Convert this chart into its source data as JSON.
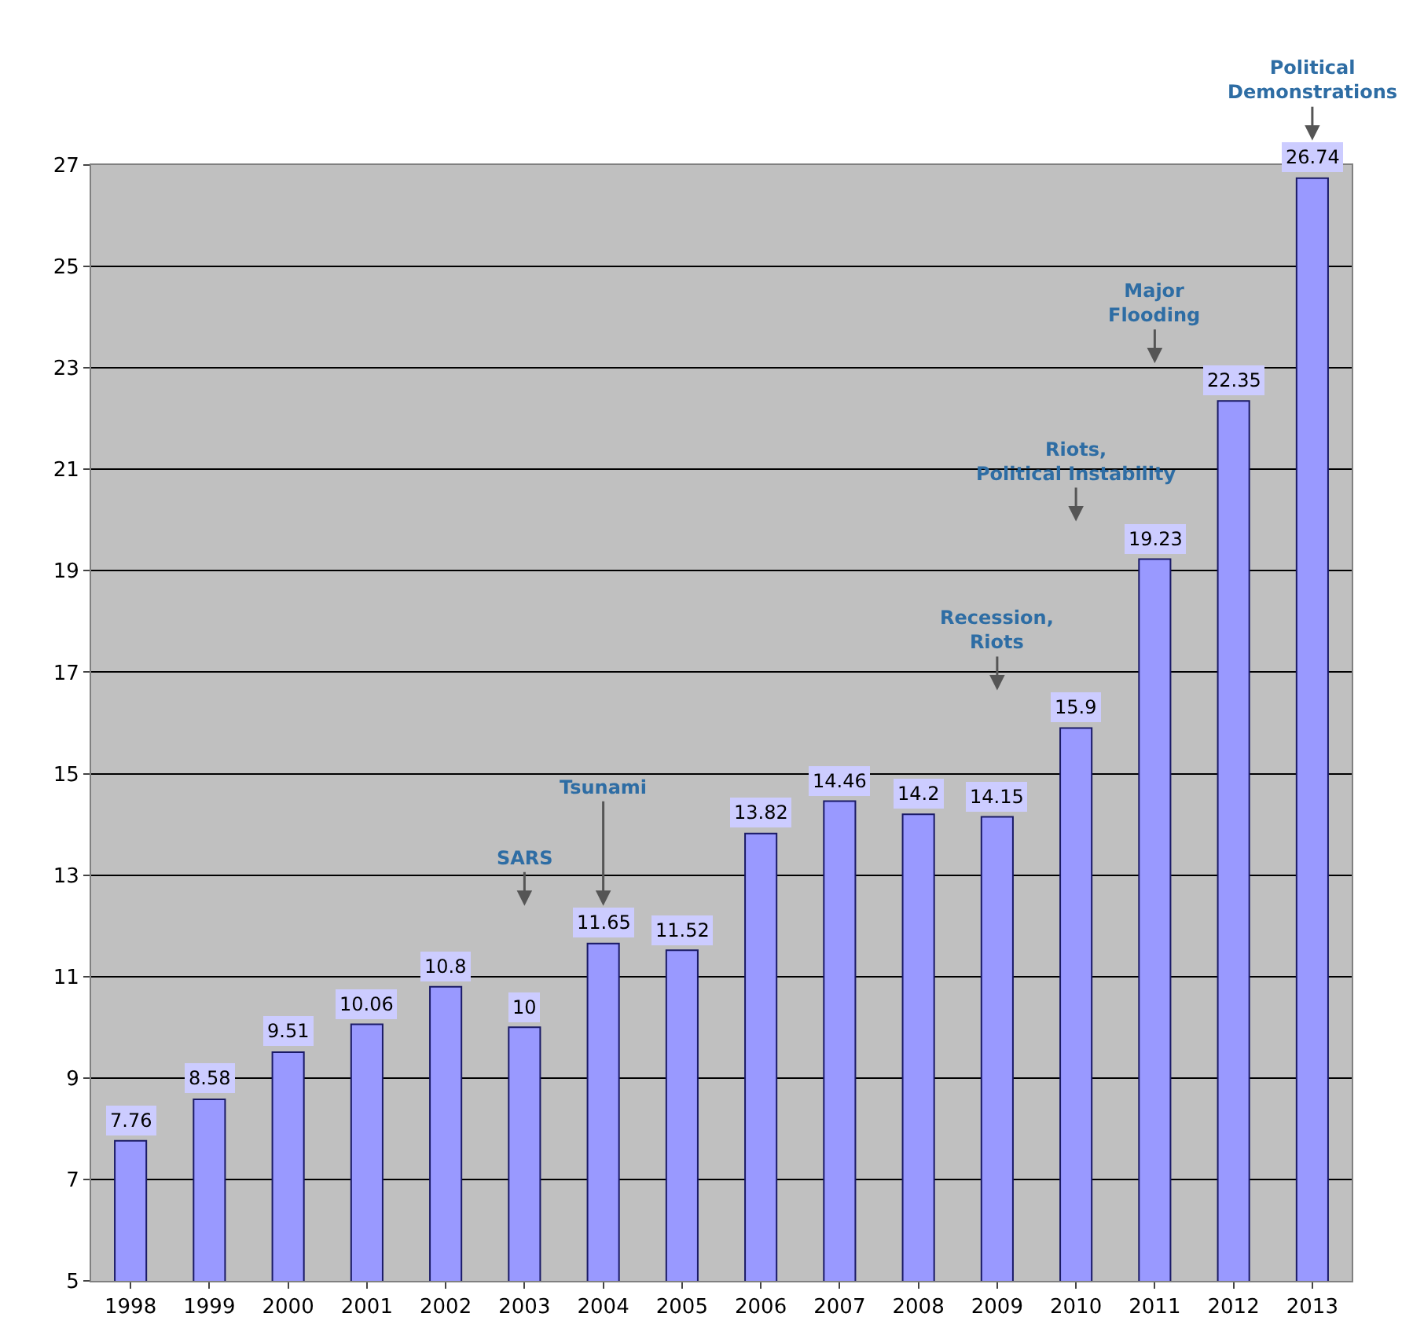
{
  "chart_data": {
    "type": "bar",
    "categories": [
      "1998",
      "1999",
      "2000",
      "2001",
      "2002",
      "2003",
      "2004",
      "2005",
      "2006",
      "2007",
      "2008",
      "2009",
      "2010",
      "2011",
      "2012",
      "2013"
    ],
    "values": [
      7.76,
      8.58,
      9.51,
      10.06,
      10.8,
      10,
      11.65,
      11.52,
      13.82,
      14.46,
      14.2,
      14.15,
      15.9,
      19.23,
      22.35,
      26.74
    ],
    "color": "#9999ff",
    "ylim": [
      5,
      27
    ],
    "yticks": [
      5,
      7,
      9,
      11,
      13,
      15,
      17,
      19,
      21,
      23,
      25,
      27
    ],
    "grid": "y",
    "data_labels": true,
    "annotations": [
      {
        "text": "SARS",
        "x": "2003",
        "y": 10
      },
      {
        "text": "Tsunami",
        "x": "2004",
        "y": 11.65
      },
      {
        "text": "Recession,\nRiots",
        "x": "2009",
        "y": 14.15
      },
      {
        "text": "Riots,\nPolitical Instability",
        "x": "2010",
        "y": 15.9
      },
      {
        "text": "Major\nFlooding",
        "x": "2011",
        "y": 19.23
      },
      {
        "text": "Political\nDemonstrations",
        "x": "2013",
        "y": 26.74
      }
    ]
  }
}
